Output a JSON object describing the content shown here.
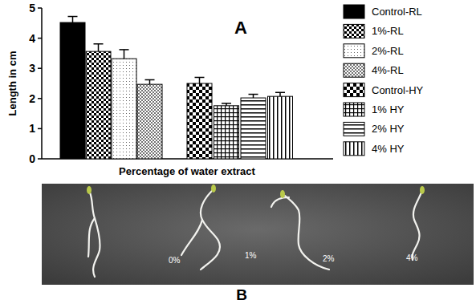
{
  "chart_data": {
    "type": "bar",
    "title": "A",
    "y_label": "Length in cm",
    "x_label": "Percentage of water extract",
    "categories": [
      null
    ],
    "series": [
      {
        "name": "Control-RL",
        "color": "#000000",
        "values": [
          4.52
        ],
        "errors": [
          0.2
        ]
      },
      {
        "name": "1%-RL",
        "color": "#000000",
        "values": [
          3.56
        ],
        "errors": [
          0.25
        ]
      },
      {
        "name": "2%-RL",
        "color": "#000000",
        "values": [
          3.32
        ],
        "errors": [
          0.3
        ]
      },
      {
        "name": "4%-RL",
        "color": "#000000",
        "values": [
          2.47
        ],
        "errors": [
          0.15
        ]
      },
      {
        "name": "Control-HY",
        "color": "#000000",
        "values": [
          2.5
        ],
        "errors": [
          0.2
        ]
      },
      {
        "name": "1% HY",
        "color": "#000000",
        "values": [
          1.76
        ],
        "errors": [
          0.08
        ]
      },
      {
        "name": "2% HY",
        "color": "#000000",
        "values": [
          2.02
        ],
        "errors": [
          0.12
        ]
      },
      {
        "name": "4% HY",
        "color": "#000000",
        "values": [
          2.07
        ],
        "errors": [
          0.13
        ]
      }
    ],
    "ylim": [
      0,
      5
    ],
    "yticks": [
      0,
      1,
      2,
      3,
      4,
      5
    ],
    "grid": false,
    "legend": "right",
    "tick_labels": "y"
  },
  "panel_b": {
    "label": "B",
    "seedling_labels": [
      "0%",
      "1%",
      "2%",
      "4%"
    ]
  }
}
